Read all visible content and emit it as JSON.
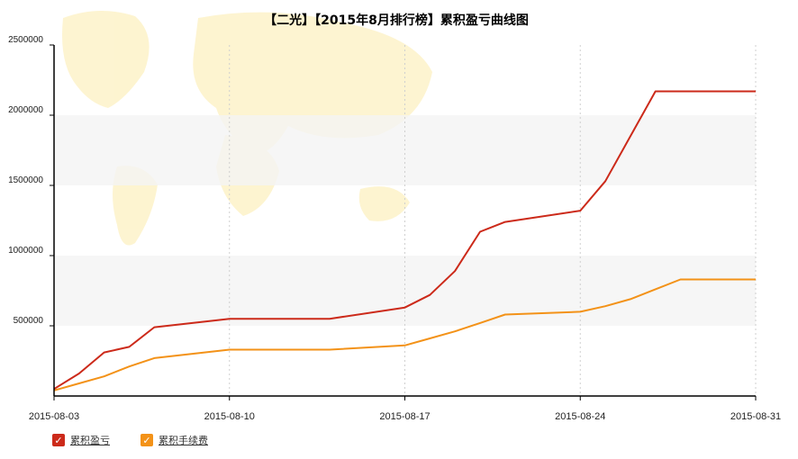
{
  "chart_data": {
    "type": "line",
    "title": "【二光】【2015年8月排行榜】累积盈亏曲线图",
    "xlabel": "",
    "ylabel": "",
    "x_ticks": [
      "2015-08-03",
      "2015-08-10",
      "2015-08-17",
      "2015-08-24",
      "2015-08-31"
    ],
    "y_ticks": [
      500000,
      1000000,
      1500000,
      2000000,
      2500000
    ],
    "ylim": [
      0,
      2500000
    ],
    "grid": true,
    "legend_position": "bottom-left",
    "x": [
      "2015-08-03",
      "2015-08-04",
      "2015-08-05",
      "2015-08-06",
      "2015-08-07",
      "2015-08-10",
      "2015-08-11",
      "2015-08-12",
      "2015-08-13",
      "2015-08-14",
      "2015-08-17",
      "2015-08-18",
      "2015-08-19",
      "2015-08-20",
      "2015-08-21",
      "2015-08-24",
      "2015-08-25",
      "2015-08-26",
      "2015-08-27",
      "2015-08-28",
      "2015-08-31"
    ],
    "series": [
      {
        "name": "累积盈亏",
        "color": "#cc2a1a",
        "values": [
          50000,
          160000,
          310000,
          350000,
          490000,
          550000,
          550000,
          550000,
          550000,
          550000,
          630000,
          720000,
          890000,
          1170000,
          1240000,
          1320000,
          1530000,
          1850000,
          2170000,
          2170000,
          2170000
        ]
      },
      {
        "name": "累积手续费",
        "color": "#f39218",
        "values": [
          40000,
          90000,
          140000,
          210000,
          270000,
          330000,
          330000,
          330000,
          330000,
          330000,
          360000,
          410000,
          460000,
          520000,
          580000,
          600000,
          640000,
          690000,
          760000,
          830000,
          830000
        ]
      }
    ]
  }
}
